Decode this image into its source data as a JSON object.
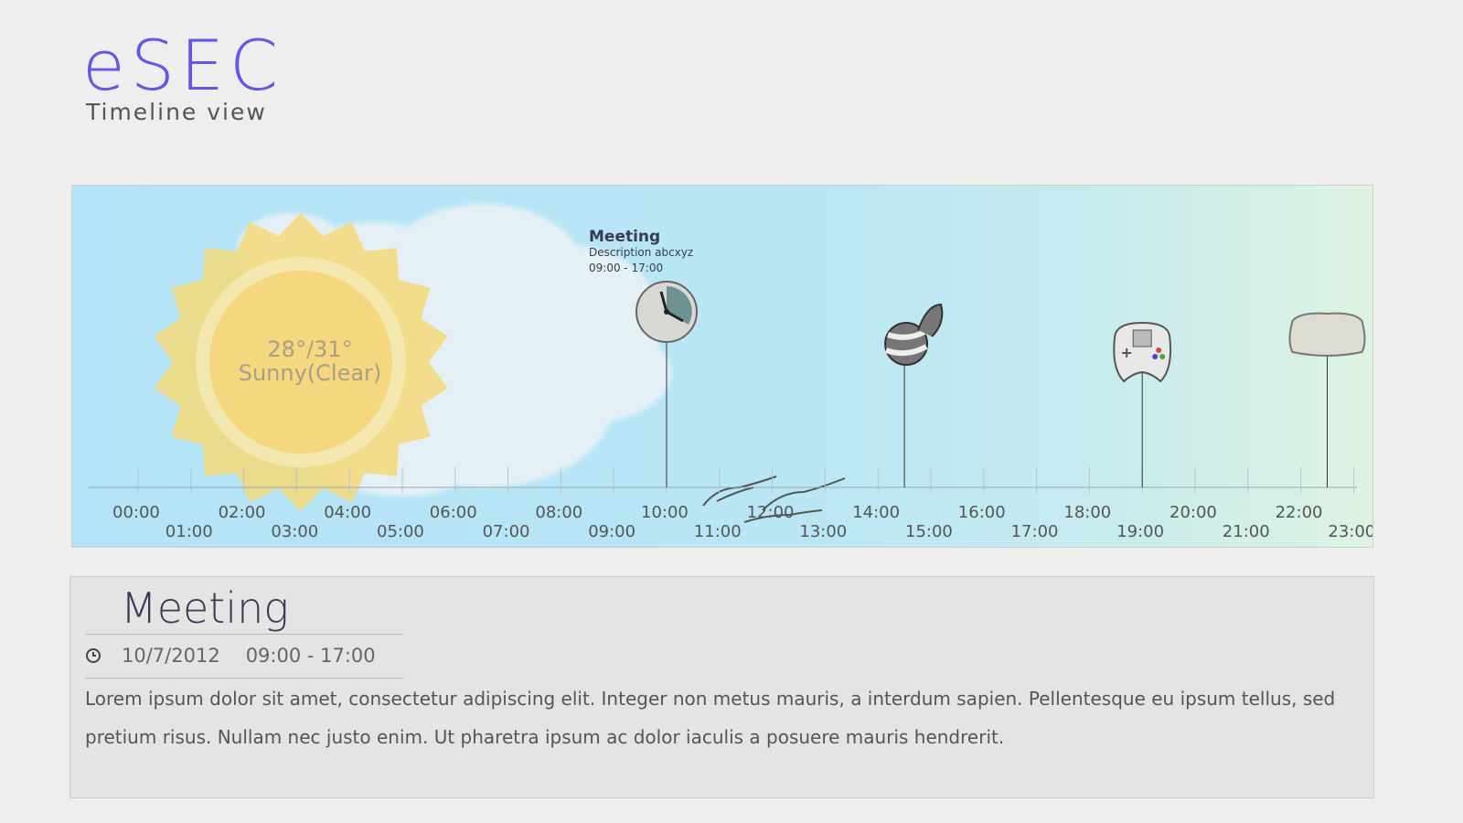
{
  "app": {
    "title": "eSEC",
    "subtitle": "Timeline view"
  },
  "weather": {
    "temperature": "28°/31°",
    "condition": "Sunny(Clear)"
  },
  "timeline": {
    "hours": [
      "00:00",
      "01:00",
      "02:00",
      "03:00",
      "04:00",
      "05:00",
      "06:00",
      "07:00",
      "08:00",
      "09:00",
      "10:00",
      "11:00",
      "12:00",
      "13:00",
      "14:00",
      "15:00",
      "16:00",
      "17:00",
      "18:00",
      "19:00",
      "20:00",
      "21:00",
      "22:00",
      "23:00"
    ],
    "events": [
      {
        "icon": "clock-icon",
        "hour": 10,
        "selected": true
      },
      {
        "icon": "music-note-icon",
        "hour": 14.5
      },
      {
        "icon": "gamepad-icon",
        "hour": 19
      },
      {
        "icon": "pillow-icon",
        "hour": 22.5
      }
    ]
  },
  "tooltip": {
    "title": "Meeting",
    "description": "Description abcxyz",
    "time": "09:00 - 17:00"
  },
  "detail": {
    "title": "Meeting",
    "date": "10/7/2012",
    "time": "09:00 - 17:00",
    "description": "Lorem ipsum dolor sit amet, consectetur adipiscing elit. Integer non metus mauris, a interdum sapien. Pellentesque eu ipsum tellus, sed pretium risus. Nullam nec justo enim. Ut pharetra ipsum ac dolor iaculis a posuere mauris hendrerit."
  }
}
